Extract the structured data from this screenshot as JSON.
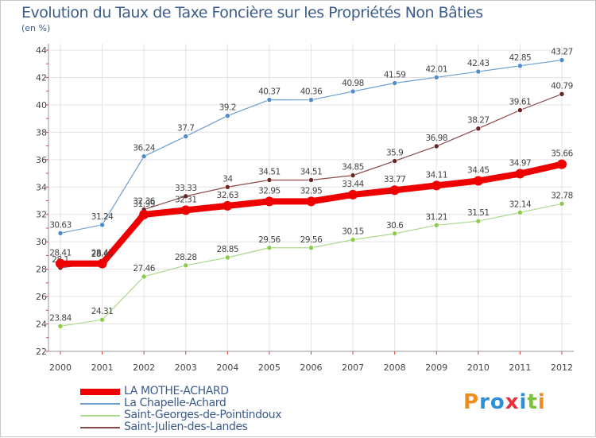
{
  "header": {
    "title": "Evolution du Taux de Taxe Foncière sur les Propriétés Non Bâties",
    "unit": "(en %)"
  },
  "logo": {
    "letters": [
      "P",
      "r",
      "o",
      "x",
      "i",
      "t",
      "i"
    ],
    "colors": [
      "#f08c1e",
      "#2e8fd8",
      "#2e8fd8",
      "#e8303c",
      "#2e8fd8",
      "#7cc040",
      "#f08c1e"
    ]
  },
  "chart_data": {
    "type": "line",
    "title": "Evolution du Taux de Taxe Foncière sur les Propriétés Non Bâties",
    "ylabel": "(en %)",
    "xlabel": "",
    "categories": [
      "2000",
      "2001",
      "2002",
      "2003",
      "2004",
      "2005",
      "2006",
      "2007",
      "2008",
      "2009",
      "2010",
      "2011",
      "2012"
    ],
    "ylim": [
      22,
      44
    ],
    "yticks": [
      "22",
      "24",
      "26",
      "28",
      "30",
      "32",
      "34",
      "36",
      "38",
      "40",
      "42",
      "44"
    ],
    "grid": true,
    "legend_position": "bottom-left",
    "series": [
      {
        "name": "La Chapelle-Achard",
        "color": "#6b9fcf",
        "marker": "#4f8cc9",
        "thick": false,
        "values": [
          30.63,
          31.24,
          36.24,
          37.7,
          39.2,
          40.37,
          40.36,
          40.98,
          41.59,
          42.01,
          42.43,
          42.85,
          43.27
        ],
        "labels": [
          "30.63",
          "31.24",
          "36.24",
          "37.7",
          "39.2",
          "40.37",
          "40.36",
          "40.98",
          "41.59",
          "42.01",
          "42.43",
          "42.85",
          "43.27"
        ]
      },
      {
        "name": "Saint-Georges-de-Pointindoux",
        "color": "#a9d98a",
        "marker": "#8ccb4a",
        "thick": false,
        "values": [
          23.84,
          24.31,
          27.46,
          28.28,
          28.85,
          29.56,
          29.56,
          30.15,
          30.6,
          31.21,
          31.51,
          32.14,
          32.78
        ],
        "labels": [
          "23.84",
          "24.31",
          "27.46",
          "28.28",
          "28.85",
          "29.56",
          "29.56",
          "30.15",
          "30.6",
          "31.21",
          "31.51",
          "32.14",
          "32.78"
        ]
      },
      {
        "name": "Saint-Julien-des-Landes",
        "color": "#8c4a4a",
        "marker": "#6e2424",
        "thick": false,
        "values": [
          28.1,
          28.49,
          32.36,
          33.33,
          34.0,
          34.51,
          34.51,
          34.85,
          35.9,
          36.98,
          38.27,
          39.61,
          40.79
        ],
        "labels": [
          "28.1",
          "28.49",
          "32.36",
          "33.33",
          "34",
          "34.51",
          "34.51",
          "34.85",
          "35.9",
          "36.98",
          "38.27",
          "39.61",
          "40.79"
        ]
      },
      {
        "name": "LA MOTHE-ACHARD",
        "color": "#ee0000",
        "marker": "#ee0000",
        "thick": true,
        "values": [
          28.41,
          28.41,
          31.99,
          32.31,
          32.63,
          32.95,
          32.95,
          33.44,
          33.77,
          34.11,
          34.45,
          34.97,
          35.66
        ],
        "labels": [
          "28.41",
          "28.41",
          "31.99",
          "32.31",
          "32.63",
          "32.95",
          "32.95",
          "33.44",
          "33.77",
          "34.11",
          "34.45",
          "34.97",
          "35.66"
        ]
      }
    ]
  },
  "legend": {
    "items": [
      {
        "label": "LA MOTHE-ACHARD",
        "color": "#ee0000",
        "thick": true
      },
      {
        "label": "La Chapelle-Achard",
        "color": "#6b9fcf",
        "thick": false
      },
      {
        "label": "Saint-Georges-de-Pointindoux",
        "color": "#a9d98a",
        "thick": false
      },
      {
        "label": "Saint-Julien-des-Landes",
        "color": "#8c4a4a",
        "thick": false
      }
    ]
  }
}
